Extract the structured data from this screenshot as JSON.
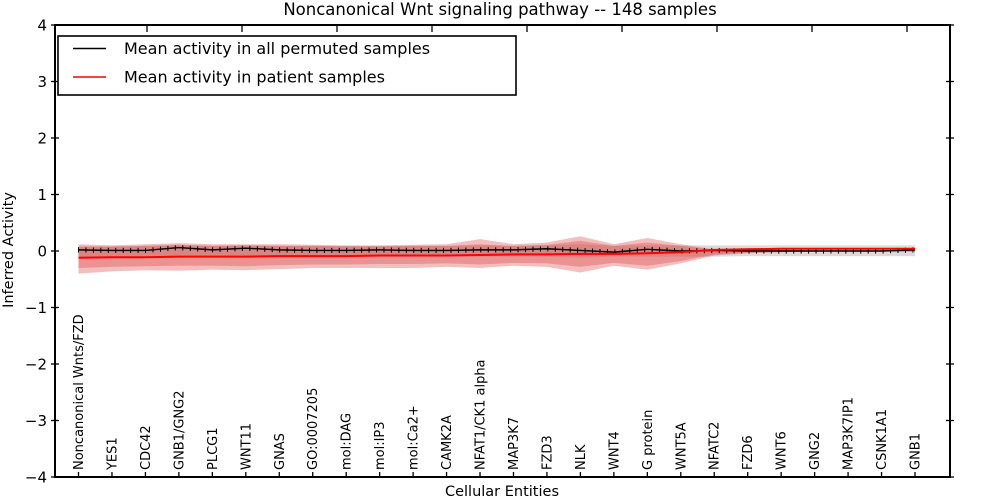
{
  "title": "Noncanonical Wnt signaling pathway -- 148 samples",
  "xlabel": "Cellular Entities",
  "ylabel": "Inferred Activity",
  "legend": {
    "entries": [
      {
        "label": "Mean activity in all permuted samples",
        "color": "#000000"
      },
      {
        "label": "Mean activity in patient samples",
        "color": "#ff0000"
      }
    ]
  },
  "chart_data": {
    "type": "line",
    "title": "Noncanonical Wnt signaling pathway -- 148 samples",
    "xlabel": "Cellular Entities",
    "ylabel": "Inferred Activity",
    "ylim": [
      -4,
      4
    ],
    "ytick_labels": [
      "4",
      "3",
      "2",
      "1",
      "0",
      "−1",
      "−2",
      "−3",
      "−4"
    ],
    "ytick_values": [
      4,
      3,
      2,
      1,
      0,
      -1,
      -2,
      -3,
      -4
    ],
    "grid": false,
    "legend_position": "upper-left",
    "categories": [
      "Noncanonical Wnts/FZD",
      "YES1",
      "CDC42",
      "GNB1/GNG2",
      "PLCG1",
      "WNT11",
      "GNAS",
      "GO:0007205",
      "mol:DAG",
      "mol:IP3",
      "mol:Ca2+",
      "CAMK2A",
      "NFAT1/CK1 alpha",
      "MAP3K7",
      "FZD3",
      "NLK",
      "WNT4",
      "G protein",
      "WNT5A",
      "NFATC2",
      "FZD6",
      "WNT6",
      "GNG2",
      "MAP3K7IP1",
      "CSNK1A1",
      "GNB1"
    ],
    "series": [
      {
        "name": "Mean activity in all permuted samples",
        "color": "#000000",
        "values": [
          0.02,
          0.01,
          0.01,
          0.06,
          0.02,
          0.05,
          0.02,
          0.01,
          0.01,
          0.02,
          0.01,
          0.01,
          0.02,
          0.02,
          0.04,
          0.01,
          -0.02,
          0.03,
          0.0,
          0.01,
          0.0,
          0.0,
          0.0,
          0.0,
          0.0,
          0.02
        ]
      },
      {
        "name": "Mean activity in patient samples",
        "color": "#ff0000",
        "values": [
          -0.12,
          -0.11,
          -0.11,
          -0.1,
          -0.1,
          -0.1,
          -0.09,
          -0.09,
          -0.09,
          -0.08,
          -0.08,
          -0.08,
          -0.07,
          -0.06,
          -0.06,
          -0.05,
          -0.05,
          -0.04,
          -0.02,
          0.02,
          0.03,
          0.04,
          0.04,
          0.04,
          0.04,
          0.04
        ]
      }
    ],
    "bands": [
      {
        "name": "permuted-samples-range",
        "color": "#999999",
        "opacity": 0.35,
        "upper": [
          0.08,
          0.08,
          0.09,
          0.1,
          0.09,
          0.1,
          0.09,
          0.09,
          0.09,
          0.09,
          0.09,
          0.09,
          0.1,
          0.09,
          0.1,
          0.12,
          0.09,
          0.1,
          0.1,
          0.1,
          0.1,
          0.1,
          0.1,
          0.1,
          0.1,
          0.1
        ],
        "lower": [
          -0.12,
          -0.12,
          -0.11,
          -0.1,
          -0.1,
          -0.1,
          -0.1,
          -0.1,
          -0.1,
          -0.1,
          -0.1,
          -0.1,
          -0.1,
          -0.1,
          -0.1,
          -0.12,
          -0.1,
          -0.1,
          -0.1,
          -0.1,
          -0.09,
          -0.09,
          -0.09,
          -0.09,
          -0.09,
          -0.09
        ]
      },
      {
        "name": "patient-samples-band-outer",
        "color": "#dd4444",
        "opacity": 0.35,
        "upper": [
          0.12,
          0.1,
          0.12,
          0.14,
          0.12,
          0.12,
          0.12,
          0.11,
          0.1,
          0.1,
          0.11,
          0.12,
          0.21,
          0.12,
          0.15,
          0.26,
          0.12,
          0.23,
          0.12,
          0.03,
          0.05,
          0.02,
          0.01,
          0.01,
          0.01,
          0.02
        ],
        "lower": [
          -0.4,
          -0.36,
          -0.34,
          -0.35,
          -0.33,
          -0.34,
          -0.32,
          -0.3,
          -0.3,
          -0.3,
          -0.3,
          -0.28,
          -0.3,
          -0.26,
          -0.28,
          -0.38,
          -0.26,
          -0.33,
          -0.22,
          -0.08,
          -0.04,
          -0.02,
          -0.01,
          -0.01,
          -0.01,
          -0.01
        ]
      },
      {
        "name": "patient-samples-band-inner",
        "color": "#dd4444",
        "opacity": 0.35,
        "upper": [
          0.08,
          0.08,
          0.09,
          0.11,
          0.09,
          0.1,
          0.09,
          0.09,
          0.08,
          0.08,
          0.09,
          0.09,
          0.12,
          0.09,
          0.11,
          0.18,
          0.09,
          0.15,
          0.09,
          0.02,
          0.04,
          0.02,
          0.01,
          0.01,
          0.01,
          0.01
        ],
        "lower": [
          -0.3,
          -0.28,
          -0.27,
          -0.26,
          -0.26,
          -0.27,
          -0.25,
          -0.24,
          -0.24,
          -0.23,
          -0.23,
          -0.22,
          -0.24,
          -0.21,
          -0.22,
          -0.28,
          -0.21,
          -0.26,
          -0.18,
          -0.06,
          -0.03,
          -0.02,
          -0.01,
          -0.01,
          -0.01,
          -0.01
        ]
      }
    ]
  }
}
